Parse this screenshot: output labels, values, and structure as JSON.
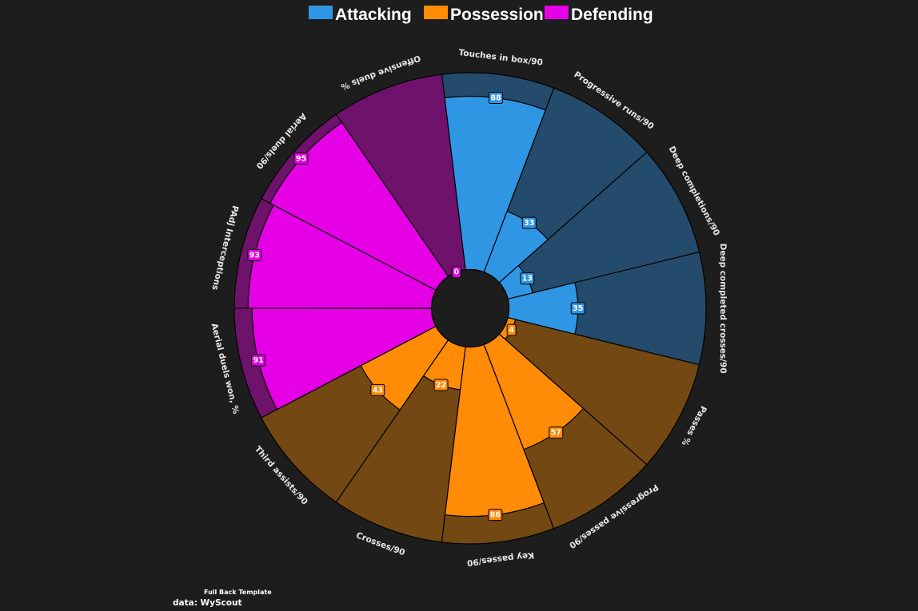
{
  "chart_data": {
    "type": "pizza",
    "legend": [
      {
        "name": "Attacking",
        "color": "#2f96e3"
      },
      {
        "name": "Possession",
        "color": "#ff8b06"
      },
      {
        "name": "Defending",
        "color": "#e500e5"
      }
    ],
    "params": [
      {
        "label": "Touches in box/90",
        "value": 88,
        "group": "Attacking"
      },
      {
        "label": "Progressive runs/90",
        "value": 33,
        "group": "Attacking"
      },
      {
        "label": "Deep completions/90",
        "value": 13,
        "group": "Attacking"
      },
      {
        "label": "Deep completed crosses/90",
        "value": 35,
        "group": "Attacking"
      },
      {
        "label": "Passes %",
        "value": 4,
        "group": "Possession"
      },
      {
        "label": "Progressive passes/90",
        "value": 57,
        "group": "Possession"
      },
      {
        "label": "Key passes/90",
        "value": 86,
        "group": "Possession"
      },
      {
        "label": "Crosses/90",
        "value": 22,
        "group": "Possession"
      },
      {
        "label": "Third assists/90",
        "value": 43,
        "group": "Possession"
      },
      {
        "label": "Aerial duels won, %",
        "value": 91,
        "group": "Defending"
      },
      {
        "label": "PAdj Interceptions",
        "value": 93,
        "group": "Defending"
      },
      {
        "label": "Aerial duels/90",
        "value": 95,
        "group": "Defending"
      },
      {
        "label": "Offensive duels %",
        "value": 0,
        "group": "Defending"
      }
    ],
    "range": [
      0,
      100
    ],
    "background_colors": {
      "Attacking": "#244b6b",
      "Possession": "#734812",
      "Defending": "#6e126c"
    }
  },
  "footer": {
    "template_name": "Full Back Template",
    "source": "data: WyScout"
  }
}
